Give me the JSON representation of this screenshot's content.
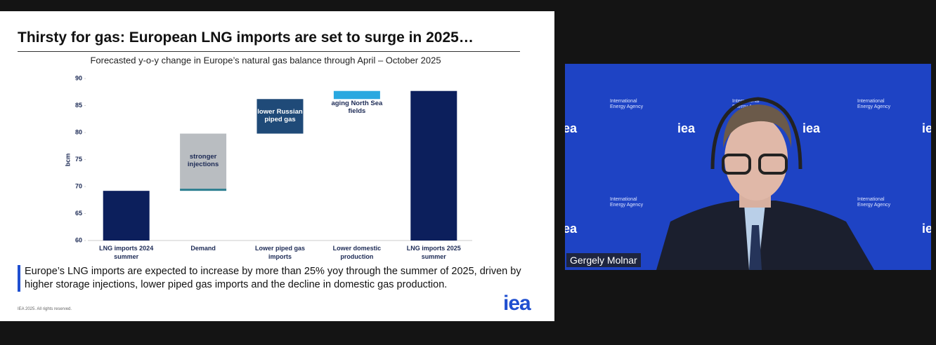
{
  "slide": {
    "title": "Thirsty for gas: European LNG imports are set to surge in 2025…",
    "body": "Europe’s LNG imports are expected to increase by more than 25% yoy through the summer of 2025, driven by higher storage injections, lower piped gas imports and the decline in domestic gas production.",
    "footnote": "IEA 2025. All rights reserved.",
    "logo": "iea"
  },
  "chart_data": {
    "type": "waterfall",
    "subtitle": "Forecasted y-o-y change in Europe’s natural gas balance through April – October 2025",
    "ylabel": "bcm",
    "categories": [
      "LNG imports 2024 summer",
      "Demand",
      "Lower piped gas imports",
      "Lower domestic production",
      "LNG imports 2025 summer"
    ],
    "steps": [
      {
        "value": 69.2,
        "color": "#0c1f5c"
      },
      {
        "segments": [
          {
            "value": 0.4,
            "color": "#2a7d8f"
          },
          {
            "value": 10.2,
            "color": "#b9bdc1",
            "label": "stronger injections"
          }
        ]
      },
      {
        "segments": [
          {
            "value": 6.4,
            "color": "#1f4a78",
            "label": "lower Russian piped gas"
          }
        ]
      },
      {
        "segments": [
          {
            "value": 1.5,
            "color": "#29a8e0",
            "label": "aging North Sea fields"
          }
        ]
      },
      {
        "value": 87.7,
        "color": "#0c1f5c"
      }
    ],
    "ylim": [
      60,
      90
    ],
    "yticks": [
      60,
      65,
      70,
      75,
      80,
      85,
      90
    ]
  },
  "video": {
    "name": "Gergely Molnar",
    "backdrop_logo": "iea",
    "backdrop_text": "International Energy Agency"
  }
}
